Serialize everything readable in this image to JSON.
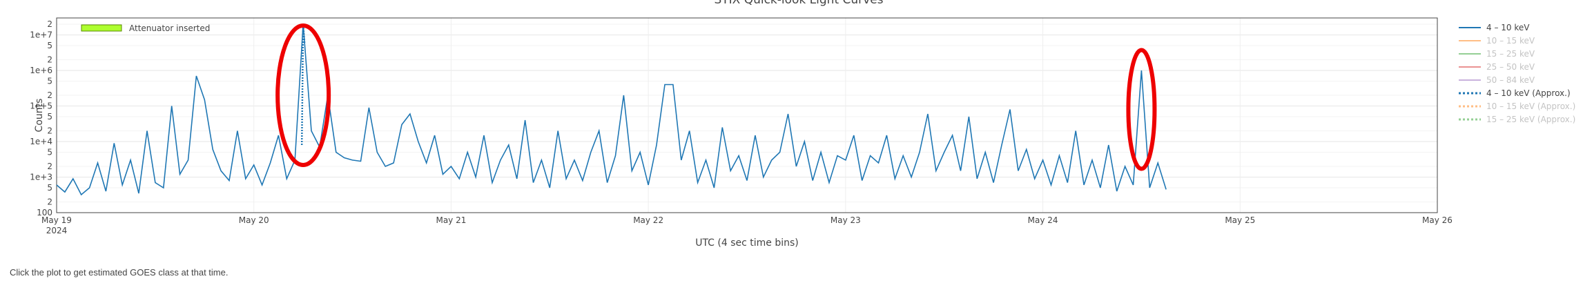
{
  "footer": {
    "note": "Click the plot to get estimated GOES class at that time."
  },
  "chart_data": {
    "type": "line",
    "title": "STIX Quick-look Light Curves",
    "xlabel": "UTC (4 sec time bins)",
    "ylabel": "Counts",
    "y_scale": "log",
    "ylim": [
      100,
      30000000
    ],
    "x_range": [
      "2024-05-19 00:00",
      "2024-05-26 00:00"
    ],
    "x_ticks": [
      {
        "label": "May 19",
        "sublabel": "2024",
        "t": "2024-05-19"
      },
      {
        "label": "May 20",
        "sublabel": "",
        "t": "2024-05-20"
      },
      {
        "label": "May 21",
        "sublabel": "",
        "t": "2024-05-21"
      },
      {
        "label": "May 22",
        "sublabel": "",
        "t": "2024-05-22"
      },
      {
        "label": "May 23",
        "sublabel": "",
        "t": "2024-05-23"
      },
      {
        "label": "May 24",
        "sublabel": "",
        "t": "2024-05-24"
      },
      {
        "label": "May 25",
        "sublabel": "",
        "t": "2024-05-25"
      },
      {
        "label": "May 26",
        "sublabel": "",
        "t": "2024-05-26"
      }
    ],
    "y_major_ticks": [
      {
        "label": "100",
        "value": 100
      },
      {
        "label": "1e+3",
        "value": 1000
      },
      {
        "label": "1e+4",
        "value": 10000
      },
      {
        "label": "1e+5",
        "value": 100000
      },
      {
        "label": "1e+6",
        "value": 1000000
      },
      {
        "label": "1e+7",
        "value": 10000000
      }
    ],
    "y_minor_labels": [
      "2",
      "5"
    ],
    "grid": true,
    "legend_position": "right",
    "annotation_band": {
      "label": "Attenuator inserted",
      "color": "#adff2f"
    },
    "series": [
      {
        "name": "4 – 10 keV",
        "color": "#1f77b4",
        "style": "solid",
        "visible": true,
        "points": [
          [
            "2024-05-19 00:00",
            600
          ],
          [
            "2024-05-19 01:00",
            380
          ],
          [
            "2024-05-19 02:00",
            900
          ],
          [
            "2024-05-19 03:00",
            320
          ],
          [
            "2024-05-19 04:00",
            500
          ],
          [
            "2024-05-19 05:00",
            2500
          ],
          [
            "2024-05-19 06:00",
            400
          ],
          [
            "2024-05-19 07:00",
            9000
          ],
          [
            "2024-05-19 08:00",
            600
          ],
          [
            "2024-05-19 09:00",
            3000
          ],
          [
            "2024-05-19 10:00",
            350
          ],
          [
            "2024-05-19 11:00",
            20000
          ],
          [
            "2024-05-19 12:00",
            700
          ],
          [
            "2024-05-19 13:00",
            500
          ],
          [
            "2024-05-19 14:00",
            100000
          ],
          [
            "2024-05-19 15:00",
            1200
          ],
          [
            "2024-05-19 16:00",
            3000
          ],
          [
            "2024-05-19 17:00",
            700000
          ],
          [
            "2024-05-19 18:00",
            150000
          ],
          [
            "2024-05-19 19:00",
            6000
          ],
          [
            "2024-05-19 20:00",
            1500
          ],
          [
            "2024-05-19 21:00",
            800
          ],
          [
            "2024-05-19 22:00",
            20000
          ],
          [
            "2024-05-19 23:00",
            900
          ],
          [
            "2024-05-20 00:00",
            2200
          ],
          [
            "2024-05-20 01:00",
            600
          ],
          [
            "2024-05-20 02:00",
            2500
          ],
          [
            "2024-05-20 03:00",
            15000
          ],
          [
            "2024-05-20 04:00",
            900
          ],
          [
            "2024-05-20 05:00",
            3000
          ],
          [
            "2024-05-20 06:00",
            20000000
          ],
          [
            "2024-05-20 07:00",
            20000
          ],
          [
            "2024-05-20 08:00",
            7000
          ],
          [
            "2024-05-20 09:00",
            200000
          ],
          [
            "2024-05-20 10:00",
            5000
          ],
          [
            "2024-05-20 11:00",
            3500
          ],
          [
            "2024-05-20 12:00",
            3000
          ],
          [
            "2024-05-20 13:00",
            2800
          ],
          [
            "2024-05-20 14:00",
            90000
          ],
          [
            "2024-05-20 15:00",
            5000
          ],
          [
            "2024-05-20 16:00",
            2000
          ],
          [
            "2024-05-20 17:00",
            2500
          ],
          [
            "2024-05-20 18:00",
            30000
          ],
          [
            "2024-05-20 19:00",
            60000
          ],
          [
            "2024-05-20 20:00",
            10000
          ],
          [
            "2024-05-20 21:00",
            2500
          ],
          [
            "2024-05-20 22:00",
            15000
          ],
          [
            "2024-05-20 23:00",
            1200
          ],
          [
            "2024-05-21 00:00",
            2000
          ],
          [
            "2024-05-21 01:00",
            900
          ],
          [
            "2024-05-21 02:00",
            5000
          ],
          [
            "2024-05-21 03:00",
            1000
          ],
          [
            "2024-05-21 04:00",
            15000
          ],
          [
            "2024-05-21 05:00",
            700
          ],
          [
            "2024-05-21 06:00",
            3000
          ],
          [
            "2024-05-21 07:00",
            8000
          ],
          [
            "2024-05-21 08:00",
            900
          ],
          [
            "2024-05-21 09:00",
            40000
          ],
          [
            "2024-05-21 10:00",
            700
          ],
          [
            "2024-05-21 11:00",
            3000
          ],
          [
            "2024-05-21 12:00",
            500
          ],
          [
            "2024-05-21 13:00",
            20000
          ],
          [
            "2024-05-21 14:00",
            900
          ],
          [
            "2024-05-21 15:00",
            3000
          ],
          [
            "2024-05-21 16:00",
            800
          ],
          [
            "2024-05-21 17:00",
            5000
          ],
          [
            "2024-05-21 18:00",
            20000
          ],
          [
            "2024-05-21 19:00",
            700
          ],
          [
            "2024-05-21 20:00",
            4000
          ],
          [
            "2024-05-21 21:00",
            200000
          ],
          [
            "2024-05-21 22:00",
            1500
          ],
          [
            "2024-05-21 23:00",
            5000
          ],
          [
            "2024-05-22 00:00",
            600
          ],
          [
            "2024-05-22 01:00",
            8000
          ],
          [
            "2024-05-22 02:00",
            400000
          ],
          [
            "2024-05-22 03:00",
            400000
          ],
          [
            "2024-05-22 04:00",
            3000
          ],
          [
            "2024-05-22 05:00",
            20000
          ],
          [
            "2024-05-22 06:00",
            700
          ],
          [
            "2024-05-22 07:00",
            3000
          ],
          [
            "2024-05-22 08:00",
            500
          ],
          [
            "2024-05-22 09:00",
            25000
          ],
          [
            "2024-05-22 10:00",
            1500
          ],
          [
            "2024-05-22 11:00",
            4000
          ],
          [
            "2024-05-22 12:00",
            800
          ],
          [
            "2024-05-22 13:00",
            15000
          ],
          [
            "2024-05-22 14:00",
            1000
          ],
          [
            "2024-05-22 15:00",
            3000
          ],
          [
            "2024-05-22 16:00",
            5000
          ],
          [
            "2024-05-22 17:00",
            60000
          ],
          [
            "2024-05-22 18:00",
            2000
          ],
          [
            "2024-05-22 19:00",
            10000
          ],
          [
            "2024-05-22 20:00",
            800
          ],
          [
            "2024-05-22 21:00",
            5000
          ],
          [
            "2024-05-22 22:00",
            700
          ],
          [
            "2024-05-22 23:00",
            4000
          ],
          [
            "2024-05-23 00:00",
            3000
          ],
          [
            "2024-05-23 01:00",
            15000
          ],
          [
            "2024-05-23 02:00",
            800
          ],
          [
            "2024-05-23 03:00",
            4000
          ],
          [
            "2024-05-23 04:00",
            2500
          ],
          [
            "2024-05-23 05:00",
            15000
          ],
          [
            "2024-05-23 06:00",
            900
          ],
          [
            "2024-05-23 07:00",
            4000
          ],
          [
            "2024-05-23 08:00",
            1000
          ],
          [
            "2024-05-23 09:00",
            5000
          ],
          [
            "2024-05-23 10:00",
            60000
          ],
          [
            "2024-05-23 11:00",
            1500
          ],
          [
            "2024-05-23 12:00",
            5000
          ],
          [
            "2024-05-23 13:00",
            15000
          ],
          [
            "2024-05-23 14:00",
            1500
          ],
          [
            "2024-05-23 15:00",
            50000
          ],
          [
            "2024-05-23 16:00",
            900
          ],
          [
            "2024-05-23 17:00",
            5000
          ],
          [
            "2024-05-23 18:00",
            700
          ],
          [
            "2024-05-23 19:00",
            8000
          ],
          [
            "2024-05-23 20:00",
            80000
          ],
          [
            "2024-05-23 21:00",
            1500
          ],
          [
            "2024-05-23 22:00",
            6000
          ],
          [
            "2024-05-23 23:00",
            900
          ],
          [
            "2024-05-24 00:00",
            3000
          ],
          [
            "2024-05-24 01:00",
            600
          ],
          [
            "2024-05-24 02:00",
            4000
          ],
          [
            "2024-05-24 03:00",
            700
          ],
          [
            "2024-05-24 04:00",
            20000
          ],
          [
            "2024-05-24 05:00",
            600
          ],
          [
            "2024-05-24 06:00",
            3000
          ],
          [
            "2024-05-24 07:00",
            500
          ],
          [
            "2024-05-24 08:00",
            8000
          ],
          [
            "2024-05-24 09:00",
            400
          ],
          [
            "2024-05-24 10:00",
            2000
          ],
          [
            "2024-05-24 11:00",
            600
          ],
          [
            "2024-05-24 12:00",
            1000000
          ],
          [
            "2024-05-24 13:00",
            500
          ],
          [
            "2024-05-24 14:00",
            2500
          ],
          [
            "2024-05-24 15:00",
            450
          ]
        ]
      },
      {
        "name": "10 – 15 keV",
        "color": "#ff7f0e",
        "style": "solid",
        "visible": false
      },
      {
        "name": "15 – 25 keV",
        "color": "#2ca02c",
        "style": "solid",
        "visible": false
      },
      {
        "name": "25 – 50 keV",
        "color": "#d62728",
        "style": "solid",
        "visible": false
      },
      {
        "name": "50 – 84 keV",
        "color": "#9467bd",
        "style": "solid",
        "visible": false
      },
      {
        "name": "4 – 10 keV (Approx.)",
        "color": "#1f77b4",
        "style": "dotted",
        "visible": true,
        "points": [
          [
            "2024-05-20 05:50",
            8000
          ],
          [
            "2024-05-20 06:00",
            20000000
          ],
          [
            "2024-05-20 06:10",
            6000000
          ]
        ]
      },
      {
        "name": "10 – 15 keV (Approx.)",
        "color": "#ff7f0e",
        "style": "dotted",
        "visible": false
      },
      {
        "name": "15 – 25 keV (Approx.)",
        "color": "#2ca02c",
        "style": "dotted",
        "visible": false
      }
    ],
    "highlight_ovals": [
      {
        "center": [
          "2024-05-20 06:00",
          200000
        ]
      },
      {
        "center": [
          "2024-05-24 12:00",
          80000
        ]
      }
    ]
  }
}
